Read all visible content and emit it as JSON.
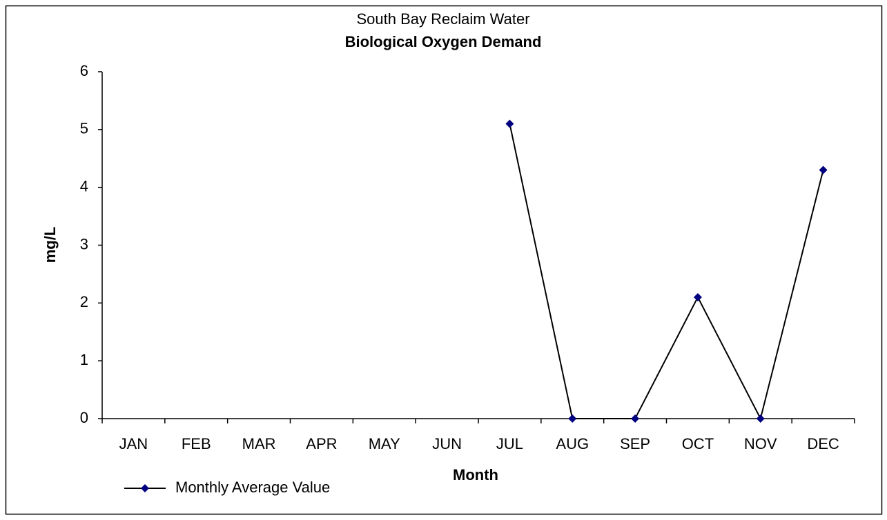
{
  "chart_data": {
    "type": "line",
    "title": "South Bay Reclaim Water",
    "subtitle": "Biological Oxygen Demand",
    "x_label": "Month",
    "y_label": "mg/L",
    "categories": [
      "JAN",
      "FEB",
      "MAR",
      "APR",
      "MAY",
      "JUN",
      "JUL",
      "AUG",
      "SEP",
      "OCT",
      "NOV",
      "DEC"
    ],
    "series": [
      {
        "name": "Monthly Average Value",
        "color": "#000080",
        "line_color": "#000000",
        "values": [
          null,
          null,
          null,
          null,
          null,
          null,
          5.1,
          0,
          0,
          2.1,
          0,
          4.3
        ]
      }
    ],
    "ylim": [
      0,
      6
    ],
    "yticks": [
      0,
      1,
      2,
      3,
      4,
      5,
      6
    ],
    "grid": false,
    "legend": "bottom-left"
  }
}
